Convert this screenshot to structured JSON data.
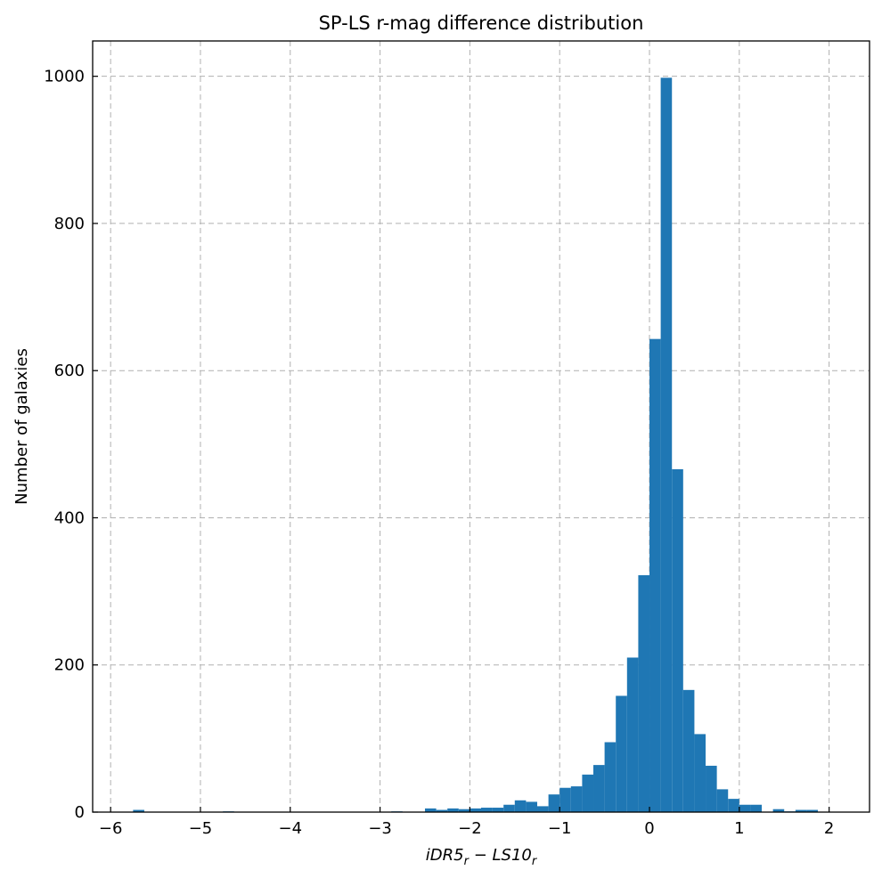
{
  "chart_data": {
    "type": "bar",
    "title": "SP-LS r-mag difference distribution",
    "xlabel": {
      "a": "iDR5",
      "a_sub": "r",
      "op": " − ",
      "b": "LS10",
      "b_sub": "r"
    },
    "ylabel": "Number of galaxies",
    "xlim": [
      -6.2,
      2.45
    ],
    "ylim": [
      0,
      1048
    ],
    "x_ticks": [
      -6,
      -5,
      -4,
      -3,
      -2,
      -1,
      0,
      1,
      2
    ],
    "x_tick_labels": [
      "−6",
      "−5",
      "−4",
      "−3",
      "−2",
      "−1",
      "0",
      "1",
      "2"
    ],
    "y_ticks": [
      0,
      200,
      400,
      600,
      800,
      1000
    ],
    "y_tick_labels": [
      "0",
      "200",
      "400",
      "600",
      "800",
      "1000"
    ],
    "grid": true,
    "bar_color": "#1f77b4",
    "bin_width": 0.125,
    "bin_start": -5.75,
    "values": [
      3,
      0,
      0,
      0,
      0,
      0,
      0,
      0,
      1,
      0,
      0,
      0,
      0,
      0,
      0,
      0,
      0,
      0,
      0,
      0,
      0,
      0,
      0,
      1,
      0,
      0,
      5,
      3,
      5,
      4,
      5,
      6,
      6,
      10,
      16,
      14,
      8,
      24,
      33,
      35,
      51,
      64,
      95,
      158,
      210,
      322,
      643,
      998,
      466,
      166,
      106,
      63,
      31,
      18,
      10,
      10,
      0,
      4,
      1,
      3,
      3
    ]
  }
}
